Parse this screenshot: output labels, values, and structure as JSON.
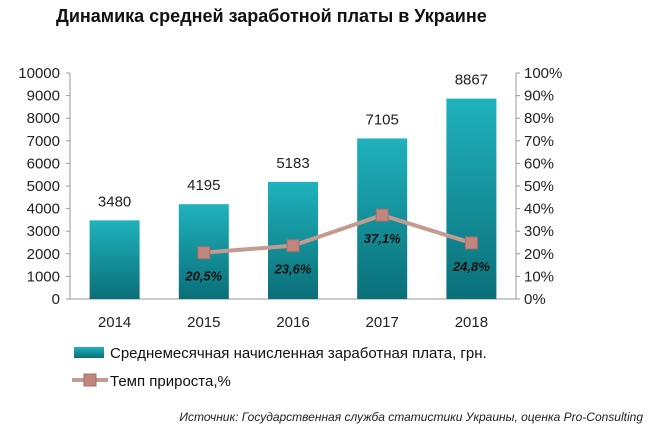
{
  "chart_data": {
    "type": "bar",
    "title": "Динамика средней заработной платы в Украине",
    "categories": [
      "2014",
      "2015",
      "2016",
      "2017",
      "2018"
    ],
    "series": [
      {
        "name": "Среднемесячная начисленная  заработная плата,  грн.",
        "type": "bar",
        "axis": "left",
        "color": "#14A3AE",
        "values": [
          3480,
          4195,
          5183,
          7105,
          8867
        ],
        "labels": [
          "3480",
          "4195",
          "5183",
          "7105",
          "8867"
        ]
      },
      {
        "name": "Темп прироста,%",
        "type": "line",
        "axis": "right",
        "color": "#C49A92",
        "values": [
          null,
          20.5,
          23.6,
          37.1,
          24.8
        ],
        "labels": [
          "",
          "20,5%",
          "23,6%",
          "37,1%",
          "24,8%"
        ]
      }
    ],
    "y_left": {
      "min": 0,
      "max": 10000,
      "ticks": [
        "0",
        "1000",
        "2000",
        "3000",
        "4000",
        "5000",
        "6000",
        "7000",
        "8000",
        "9000",
        "10000"
      ]
    },
    "y_right": {
      "min": 0,
      "max": 100,
      "ticks": [
        "0%",
        "10%",
        "20%",
        "30%",
        "40%",
        "50%",
        "60%",
        "70%",
        "80%",
        "90%",
        "100%"
      ]
    },
    "grid": false,
    "legend_position": "bottom-left"
  },
  "source": "Источник: Государственная служба статистики Украины, оценка Pro-Consulting"
}
